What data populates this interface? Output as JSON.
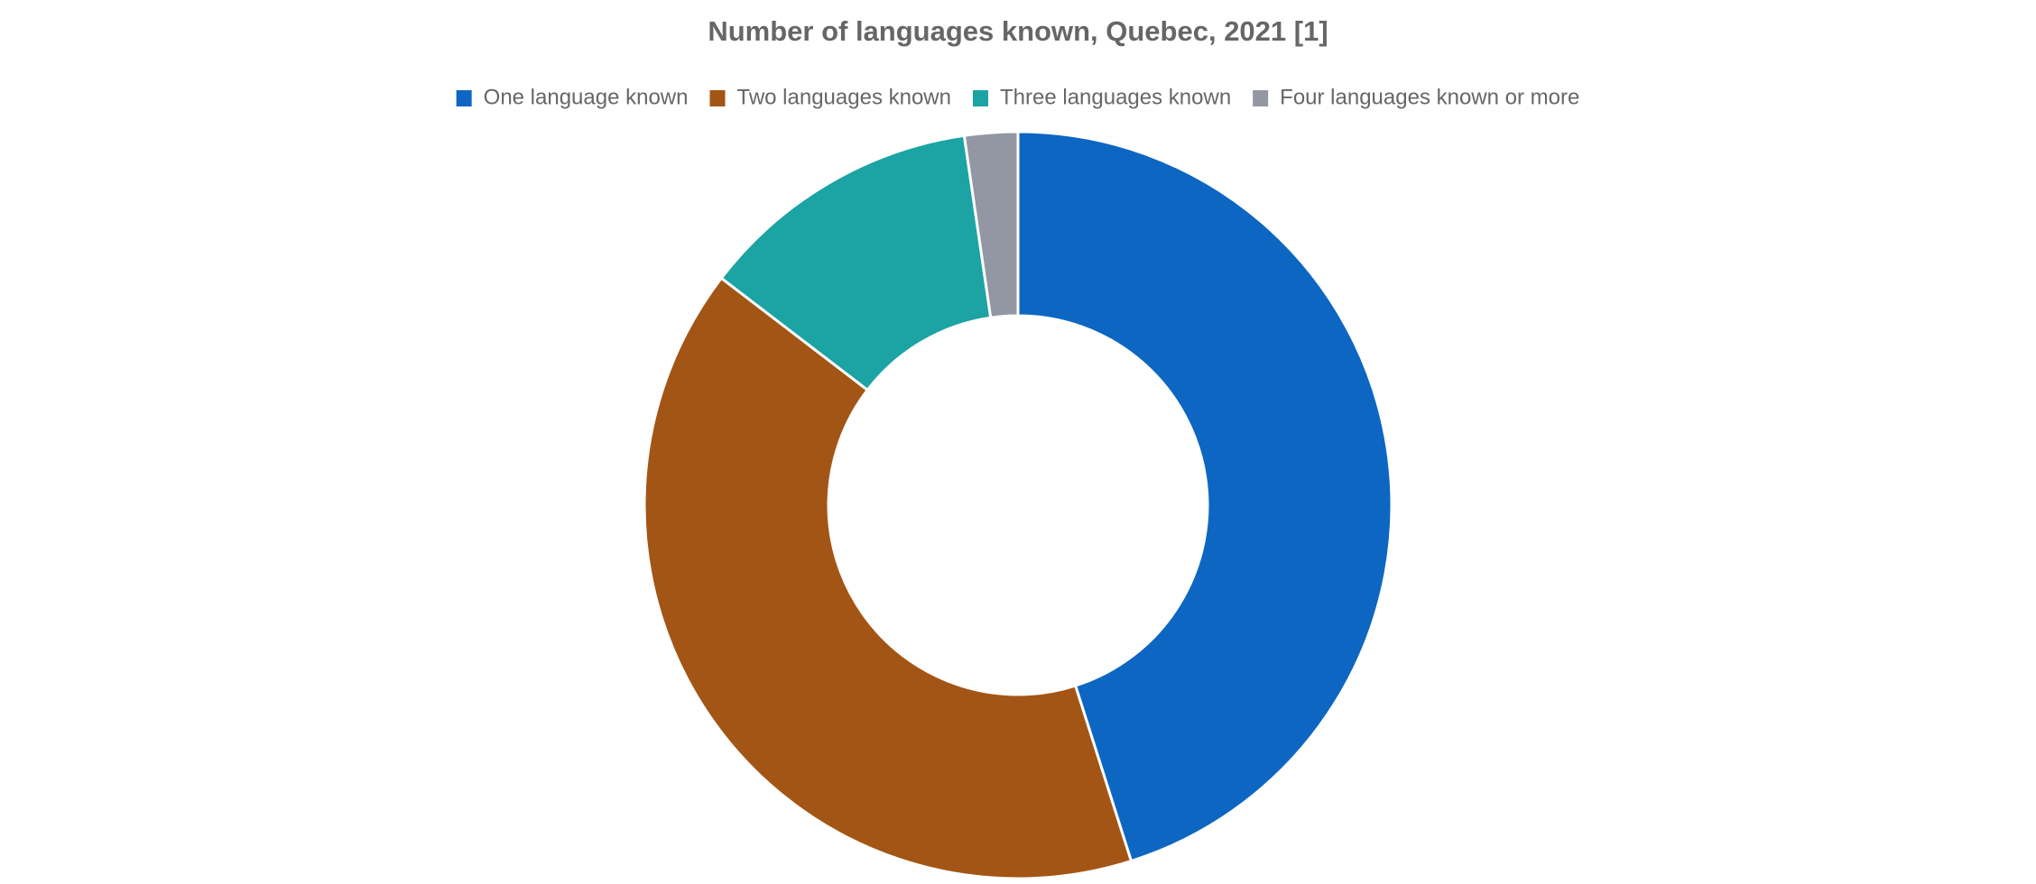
{
  "chart_data": {
    "type": "donut",
    "title": "Number of languages known, Quebec, 2021 [1]",
    "categories": [
      "One language known",
      "Two languages known",
      "Three languages known",
      "Four languages known or more"
    ],
    "values": [
      45.1,
      40.3,
      12.3,
      2.3
    ],
    "colors": [
      "#0d66c2",
      "#a35515",
      "#1ca3a3",
      "#9397a3"
    ],
    "legend": "top"
  }
}
